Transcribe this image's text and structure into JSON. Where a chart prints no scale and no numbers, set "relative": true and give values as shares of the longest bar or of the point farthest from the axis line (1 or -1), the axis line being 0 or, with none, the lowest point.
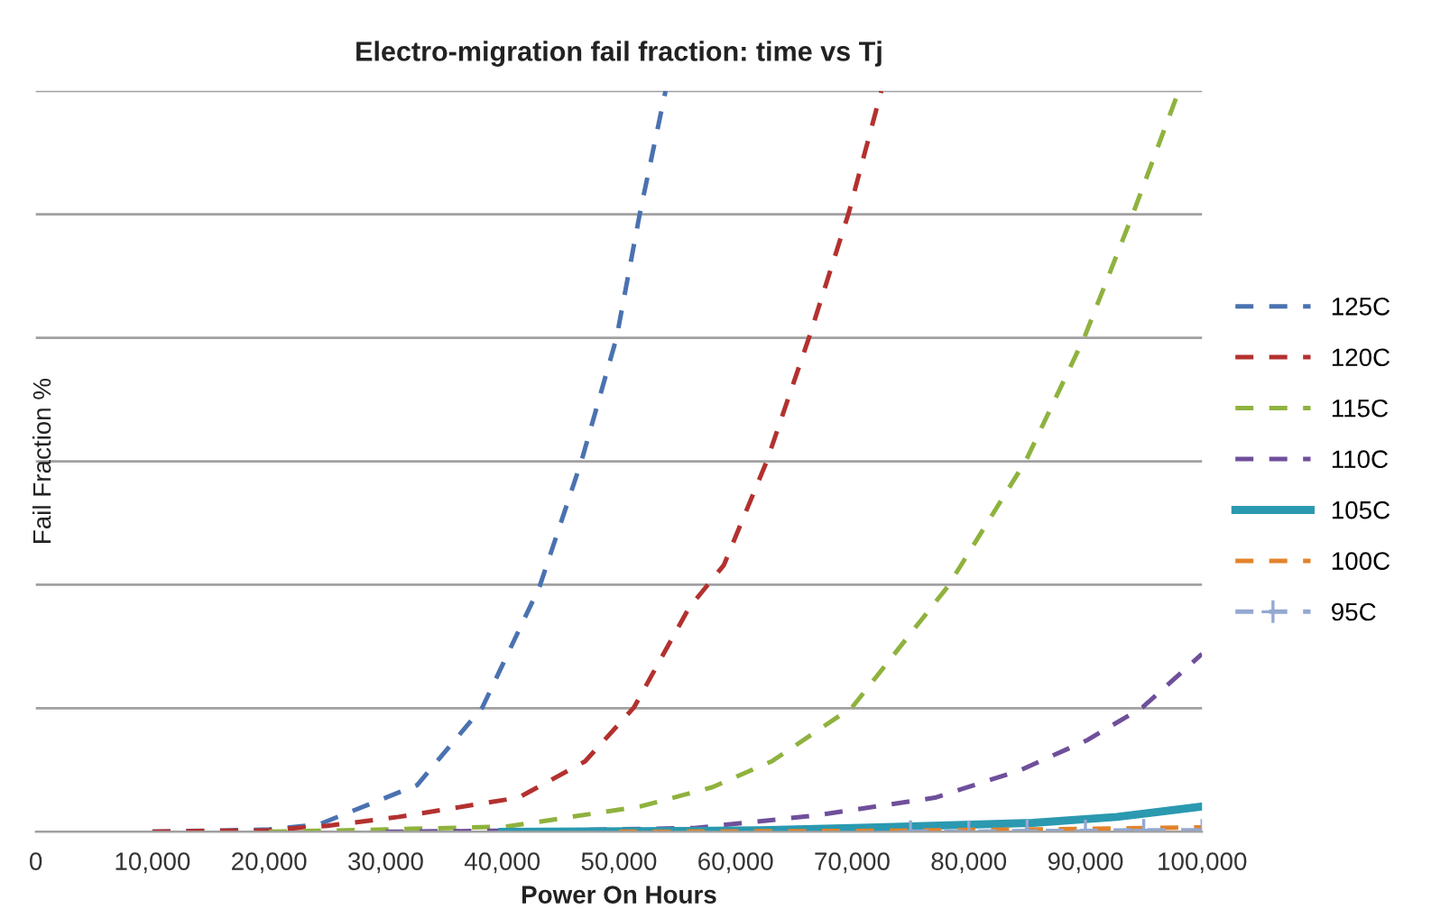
{
  "chart_data": {
    "type": "line",
    "title": "Electro-migration fail fraction: time vs Tj",
    "xlabel": "Power On Hours",
    "ylabel": "Fail Fraction %",
    "relative": true,
    "xlim": [
      0,
      100000
    ],
    "xticks": [
      {
        "value": 0,
        "label": "0"
      },
      {
        "value": 10000,
        "label": "10,000"
      },
      {
        "value": 20000,
        "label": "20,000"
      },
      {
        "value": 30000,
        "label": "30,000"
      },
      {
        "value": 40000,
        "label": "40,000"
      },
      {
        "value": 50000,
        "label": "50,000"
      },
      {
        "value": 60000,
        "label": "60,000"
      },
      {
        "value": 70000,
        "label": "70,000"
      },
      {
        "value": 80000,
        "label": "80,000"
      },
      {
        "value": 90000,
        "label": "90,000"
      },
      {
        "value": 100000,
        "label": "100,000"
      }
    ],
    "grid": "y",
    "legend": "right",
    "series": [
      {
        "name": "125C",
        "color": "#4a72b0",
        "line_style": "dashed",
        "x": [
          10000,
          20000,
          24300,
          32700,
          38300,
          43200,
          46800,
          49800,
          51800,
          54000
        ],
        "values": [
          0,
          0.003,
          0.01,
          0.063,
          0.168,
          0.331,
          0.501,
          0.667,
          0.835,
          1
        ]
      },
      {
        "name": "120C",
        "color": "#b3312f",
        "line_style": "dashed",
        "x": [
          10000,
          20000,
          25000,
          31100,
          41400,
          47100,
          51300,
          56000,
          59000,
          62700,
          66300,
          69700,
          72500
        ],
        "values": [
          0,
          0.002,
          0.008,
          0.02,
          0.046,
          0.095,
          0.168,
          0.302,
          0.36,
          0.501,
          0.667,
          0.835,
          1
        ]
      },
      {
        "name": "115C",
        "color": "#8fb23e",
        "line_style": "dashed",
        "x": [
          20000,
          30000,
          40400,
          51800,
          58000,
          63100,
          70000,
          78200,
          84900,
          89900,
          94100,
          98000
        ],
        "values": [
          0,
          0.003,
          0.007,
          0.034,
          0.06,
          0.095,
          0.168,
          0.331,
          0.501,
          0.667,
          0.835,
          1
        ]
      },
      {
        "name": "110C",
        "color": "#6f4f9b",
        "line_style": "dashed",
        "x": [
          30000,
          45000,
          56500,
          66900,
          77100,
          84400,
          90200,
          94900,
          100000
        ],
        "values": [
          0,
          0.002,
          0.005,
          0.022,
          0.046,
          0.083,
          0.124,
          0.168,
          0.24
        ]
      },
      {
        "name": "105C",
        "color": "#2b99b0",
        "line_style": "solid",
        "x": [
          40000,
          55000,
          62000,
          70000,
          85500,
          92700,
          100000
        ],
        "values": [
          0,
          0.001,
          0.002,
          0.005,
          0.012,
          0.02,
          0.034
        ]
      },
      {
        "name": "100C",
        "color": "#e3832c",
        "line_style": "dashed",
        "x": [
          50000,
          70000,
          85000,
          100000
        ],
        "values": [
          0,
          0.001,
          0.003,
          0.006
        ]
      },
      {
        "name": "95C",
        "color": "#94a8d1",
        "line_style": "dashed",
        "marker": "cross",
        "x": [
          75000,
          80000,
          85000,
          90000,
          95000,
          100000
        ],
        "values": [
          0,
          0,
          0.001,
          0.001,
          0.002,
          0.002
        ]
      }
    ]
  }
}
